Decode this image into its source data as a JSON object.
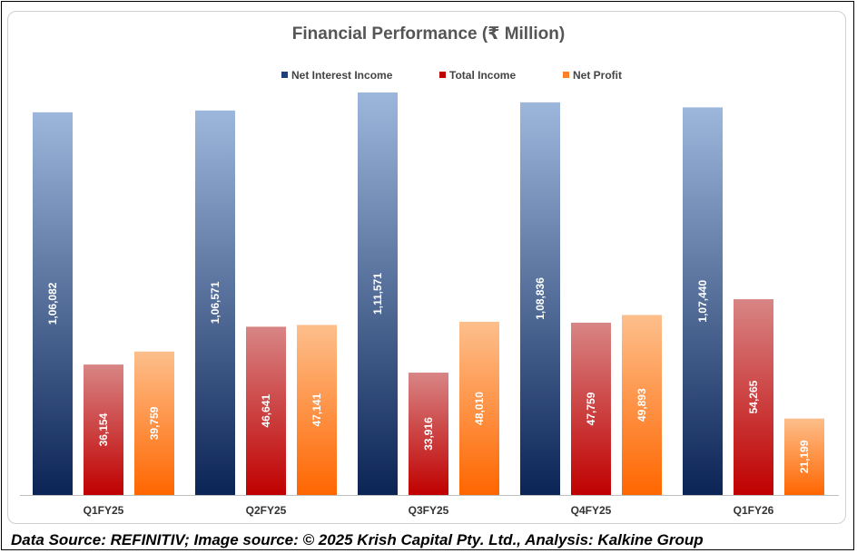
{
  "chart_data": {
    "type": "bar",
    "title": "Financial Performance (₹ Million)",
    "categories": [
      "Q1FY25",
      "Q2FY25",
      "Q3FY25",
      "Q4FY25",
      "Q1FY26"
    ],
    "series": [
      {
        "name": "Net Interest Income",
        "values": [
          106082,
          106571,
          111571,
          108836,
          107440
        ],
        "labels": [
          "1,06,082",
          "1,06,571",
          "1,11,571",
          "1,08,836",
          "1,07,440"
        ],
        "color_top": "#9db7dc",
        "color_bottom": "#0b2456",
        "legend_color": "#1f3f7a"
      },
      {
        "name": "Total Income",
        "values": [
          36154,
          46641,
          33916,
          47759,
          54265
        ],
        "labels": [
          "36,154",
          "46,641",
          "33,916",
          "47,759",
          "54,265"
        ],
        "color_top": "#d88585",
        "color_bottom": "#c00000",
        "legend_color": "#c00000"
      },
      {
        "name": "Net Profit",
        "values": [
          39759,
          47141,
          48010,
          49893,
          21199
        ],
        "labels": [
          "39,759",
          "47,141",
          "48,010",
          "49,893",
          "21,199"
        ],
        "color_top": "#fdbf8c",
        "color_bottom": "#ff6600",
        "legend_color": "#ff7f27"
      }
    ],
    "xlabel": "",
    "ylabel": "",
    "ylim": [
      0,
      111571
    ],
    "grid": false,
    "legend_position": "top-center"
  },
  "footer": {
    "text": "Data Source: REFINITIV; Image source: © 2025 Krish Capital Pty. Ltd., Analysis: Kalkine Group"
  }
}
